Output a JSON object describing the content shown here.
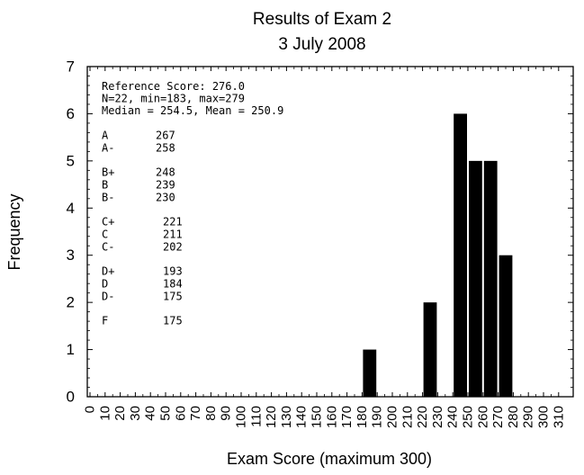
{
  "chart_data": {
    "type": "bar",
    "title": "Results of Exam 2",
    "subtitle": "3 July 2008",
    "xlabel": "Exam Score (maximum 300)",
    "ylabel": "Frequency",
    "xlim": [
      0,
      310
    ],
    "ylim": [
      0,
      7
    ],
    "x_ticks": [
      "0",
      "10",
      "20",
      "30",
      "40",
      "50",
      "60",
      "70",
      "80",
      "90",
      "100",
      "110",
      "120",
      "130",
      "140",
      "150",
      "160",
      "170",
      "180",
      "190",
      "200",
      "210",
      "220",
      "230",
      "240",
      "250",
      "260",
      "270",
      "280",
      "290",
      "300",
      "310"
    ],
    "y_ticks": [
      "0",
      "1",
      "2",
      "3",
      "4",
      "5",
      "6",
      "7"
    ],
    "bin_width": 10,
    "bars": [
      {
        "bin": 180,
        "value": 1
      },
      {
        "bin": 220,
        "value": 2
      },
      {
        "bin": 240,
        "value": 6
      },
      {
        "bin": 250,
        "value": 5
      },
      {
        "bin": 260,
        "value": 5
      },
      {
        "bin": 270,
        "value": 3
      }
    ],
    "grid": false,
    "annotation": {
      "summary": [
        "Reference Score: 276.0",
        "N=22, min=183, max=279",
        "Median = 254.5, Mean = 250.9"
      ],
      "grade_groups": [
        [
          {
            "grade": "A",
            "score": "267"
          },
          {
            "grade": "A-",
            "score": "258"
          }
        ],
        [
          {
            "grade": "B+",
            "score": "248"
          },
          {
            "grade": "B",
            "score": "239"
          },
          {
            "grade": "B-",
            "score": "230"
          }
        ],
        [
          {
            "grade": "C+",
            "score": "221"
          },
          {
            "grade": "C",
            "score": "211"
          },
          {
            "grade": "C-",
            "score": "202"
          }
        ],
        [
          {
            "grade": "D+",
            "score": "193"
          },
          {
            "grade": "D",
            "score": "184"
          },
          {
            "grade": "D-",
            "score": "175"
          }
        ],
        [
          {
            "grade": "F",
            "score": "175"
          }
        ]
      ]
    }
  }
}
